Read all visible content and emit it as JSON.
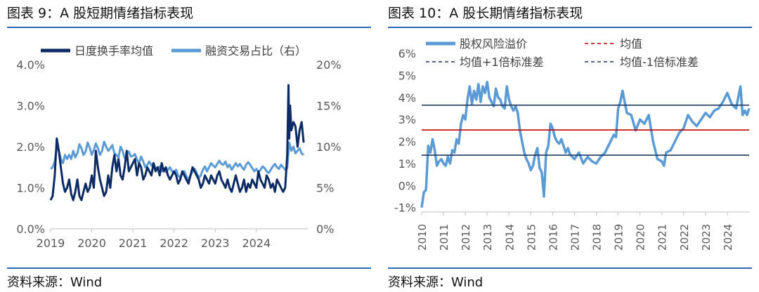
{
  "chart_data": [
    {
      "id": "fig9",
      "type": "line",
      "title": "图表  9：A  股短期情绪指标表现",
      "source": "资料来源：Wind",
      "colors": {
        "turnover": "#0c2a63",
        "margin": "#5b9bd5"
      },
      "x_ticks": [
        "2019",
        "2020",
        "2021",
        "2022",
        "2023",
        "2024"
      ],
      "y_left_ticks": [
        "0.0%",
        "1.0%",
        "2.0%",
        "3.0%",
        "4.0%"
      ],
      "y_right_ticks": [
        "0%",
        "5%",
        "10%",
        "15%",
        "20%"
      ],
      "ylim_left": [
        0,
        4
      ],
      "ylim_right": [
        0,
        20
      ],
      "xlim": [
        2019.0,
        2025.25
      ],
      "legend_position": "top",
      "series": [
        {
          "name": "日度换手率均值",
          "axis": "left",
          "x": [
            2019.0,
            2019.05,
            2019.1,
            2019.15,
            2019.2,
            2019.25,
            2019.3,
            2019.35,
            2019.4,
            2019.45,
            2019.5,
            2019.55,
            2019.6,
            2019.65,
            2019.7,
            2019.75,
            2019.8,
            2019.85,
            2019.9,
            2019.95,
            2020.0,
            2020.05,
            2020.1,
            2020.15,
            2020.2,
            2020.25,
            2020.3,
            2020.35,
            2020.4,
            2020.45,
            2020.5,
            2020.55,
            2020.6,
            2020.65,
            2020.7,
            2020.75,
            2020.8,
            2020.85,
            2020.9,
            2020.95,
            2021.0,
            2021.05,
            2021.1,
            2021.15,
            2021.2,
            2021.25,
            2021.3,
            2021.35,
            2021.4,
            2021.45,
            2021.5,
            2021.55,
            2021.6,
            2021.65,
            2021.7,
            2021.75,
            2021.8,
            2021.85,
            2021.9,
            2021.95,
            2022.0,
            2022.05,
            2022.1,
            2022.15,
            2022.2,
            2022.25,
            2022.3,
            2022.35,
            2022.4,
            2022.45,
            2022.5,
            2022.55,
            2022.6,
            2022.65,
            2022.7,
            2022.75,
            2022.8,
            2022.85,
            2022.9,
            2022.95,
            2023.0,
            2023.05,
            2023.1,
            2023.15,
            2023.2,
            2023.25,
            2023.3,
            2023.35,
            2023.4,
            2023.45,
            2023.5,
            2023.55,
            2023.6,
            2023.65,
            2023.7,
            2023.75,
            2023.8,
            2023.85,
            2023.9,
            2023.95,
            2024.0,
            2024.05,
            2024.1,
            2024.15,
            2024.2,
            2024.25,
            2024.3,
            2024.35,
            2024.4,
            2024.45,
            2024.5,
            2024.55,
            2024.6,
            2024.65,
            2024.7,
            2024.75,
            2024.78,
            2024.8,
            2024.82,
            2024.85,
            2024.9,
            2024.95,
            2025.0,
            2025.05,
            2025.1,
            2025.15
          ],
          "y": [
            0.7,
            0.8,
            1.3,
            2.2,
            1.9,
            1.5,
            1.1,
            0.9,
            1.0,
            1.2,
            0.85,
            0.7,
            0.9,
            1.2,
            0.8,
            0.7,
            0.9,
            1.1,
            0.9,
            1.0,
            1.3,
            1.0,
            1.9,
            1.5,
            1.2,
            1.0,
            0.8,
            0.9,
            1.3,
            1.0,
            1.5,
            1.8,
            1.4,
            1.7,
            1.3,
            1.2,
            1.5,
            1.9,
            1.4,
            1.5,
            1.6,
            1.7,
            1.3,
            1.6,
            1.5,
            1.2,
            1.3,
            1.5,
            1.4,
            1.3,
            1.6,
            1.4,
            1.5,
            1.3,
            1.6,
            1.4,
            1.5,
            1.3,
            1.2,
            1.3,
            1.4,
            1.3,
            1.1,
            1.2,
            1.4,
            1.3,
            1.2,
            1.1,
            1.3,
            1.5,
            1.4,
            1.3,
            1.2,
            1.0,
            1.1,
            1.3,
            1.2,
            1.1,
            1.3,
            1.2,
            1.1,
            1.3,
            1.4,
            1.2,
            1.1,
            1.0,
            1.2,
            1.0,
            0.9,
            1.1,
            1.3,
            1.1,
            0.9,
            1.0,
            1.2,
            0.9,
            1.1,
            1.0,
            1.2,
            1.1,
            1.0,
            1.4,
            1.2,
            1.1,
            1.0,
            1.3,
            1.2,
            1.0,
            1.1,
            0.9,
            1.2,
            1.1,
            1.0,
            0.9,
            1.0,
            1.8,
            3.5,
            2.2,
            3.0,
            2.4,
            2.6,
            2.5,
            2.0,
            2.4,
            2.6,
            2.1
          ]
        },
        {
          "name": "融资交易占比（右）",
          "axis": "right",
          "x": [
            2019.0,
            2019.05,
            2019.1,
            2019.15,
            2019.2,
            2019.25,
            2019.3,
            2019.35,
            2019.4,
            2019.45,
            2019.5,
            2019.55,
            2019.6,
            2019.65,
            2019.7,
            2019.75,
            2019.8,
            2019.85,
            2019.9,
            2019.95,
            2020.0,
            2020.05,
            2020.1,
            2020.15,
            2020.2,
            2020.25,
            2020.3,
            2020.35,
            2020.4,
            2020.45,
            2020.5,
            2020.55,
            2020.6,
            2020.65,
            2020.7,
            2020.75,
            2020.8,
            2020.85,
            2020.9,
            2020.95,
            2021.0,
            2021.05,
            2021.1,
            2021.15,
            2021.2,
            2021.25,
            2021.3,
            2021.35,
            2021.4,
            2021.45,
            2021.5,
            2021.55,
            2021.6,
            2021.65,
            2021.7,
            2021.75,
            2021.8,
            2021.85,
            2021.9,
            2021.95,
            2022.0,
            2022.05,
            2022.1,
            2022.15,
            2022.2,
            2022.25,
            2022.3,
            2022.35,
            2022.4,
            2022.45,
            2022.5,
            2022.55,
            2022.6,
            2022.65,
            2022.7,
            2022.75,
            2022.8,
            2022.85,
            2022.9,
            2022.95,
            2023.0,
            2023.05,
            2023.1,
            2023.15,
            2023.2,
            2023.25,
            2023.3,
            2023.35,
            2023.4,
            2023.45,
            2023.5,
            2023.55,
            2023.6,
            2023.65,
            2023.7,
            2023.75,
            2023.8,
            2023.85,
            2023.9,
            2023.95,
            2024.0,
            2024.05,
            2024.1,
            2024.15,
            2024.2,
            2024.25,
            2024.3,
            2024.35,
            2024.4,
            2024.45,
            2024.5,
            2024.55,
            2024.6,
            2024.65,
            2024.7,
            2024.75,
            2024.8,
            2024.85,
            2024.9,
            2024.95,
            2025.0,
            2025.05,
            2025.1,
            2025.15
          ],
          "y": [
            7.3,
            7.5,
            8.2,
            10.0,
            9.5,
            8.5,
            8.0,
            9.0,
            8.5,
            9.0,
            8.5,
            9.5,
            8.7,
            9.2,
            10.3,
            9.8,
            9.0,
            9.4,
            10.5,
            9.9,
            9.0,
            9.6,
            10.4,
            9.8,
            9.0,
            9.5,
            10.6,
            10.0,
            9.5,
            9.8,
            10.2,
            9.2,
            9.0,
            8.7,
            10.0,
            9.5,
            8.6,
            9.0,
            9.4,
            8.8,
            8.9,
            9.1,
            8.4,
            8.0,
            8.8,
            8.2,
            7.5,
            7.8,
            8.2,
            7.7,
            8.0,
            7.4,
            7.2,
            7.6,
            7.0,
            7.3,
            6.9,
            7.2,
            7.5,
            7.0,
            6.8,
            7.2,
            6.5,
            6.2,
            6.8,
            7.0,
            6.4,
            6.0,
            6.5,
            7.0,
            7.3,
            6.8,
            6.2,
            6.5,
            7.2,
            7.6,
            7.0,
            7.5,
            8.0,
            7.7,
            7.5,
            7.9,
            8.3,
            7.9,
            7.8,
            8.2,
            7.5,
            7.8,
            7.2,
            7.6,
            8.0,
            7.6,
            7.9,
            7.5,
            7.2,
            7.8,
            8.1,
            7.8,
            7.4,
            7.0,
            7.3,
            6.9,
            7.2,
            7.6,
            7.4,
            7.0,
            6.8,
            7.2,
            7.6,
            7.9,
            7.5,
            7.3,
            7.8,
            7.5,
            7.2,
            7.4,
            10.5,
            9.5,
            10.0,
            9.2,
            9.5,
            9.8,
            9.2,
            9.0
          ]
        }
      ]
    },
    {
      "id": "fig10",
      "type": "line",
      "title": "图表  10：A  股长期情绪指标表现",
      "source": "资料来源：Wind",
      "colors": {
        "premium": "#5b9bd5",
        "mean": "#c00000",
        "band": "#1f3864"
      },
      "x_ticks": [
        "2010",
        "2011",
        "2012",
        "2013",
        "2014",
        "2015",
        "2016",
        "2017",
        "2018",
        "2019",
        "2020",
        "2021",
        "2022",
        "2023",
        "2024"
      ],
      "y_ticks": [
        "-1%",
        "0%",
        "1%",
        "2%",
        "3%",
        "4%",
        "5%",
        "6%"
      ],
      "ylim": [
        -1.2,
        6
      ],
      "xlim": [
        2010.0,
        2025.0
      ],
      "legend_position": "top",
      "series": [
        {
          "name": "股权风险溢价",
          "x": [
            2010.0,
            2010.1,
            2010.2,
            2010.3,
            2010.4,
            2010.5,
            2010.6,
            2010.7,
            2010.8,
            2010.9,
            2011.0,
            2011.1,
            2011.2,
            2011.3,
            2011.4,
            2011.5,
            2011.6,
            2011.7,
            2011.8,
            2011.9,
            2012.0,
            2012.1,
            2012.2,
            2012.3,
            2012.4,
            2012.5,
            2012.6,
            2012.7,
            2012.8,
            2012.9,
            2013.0,
            2013.1,
            2013.2,
            2013.3,
            2013.4,
            2013.5,
            2013.6,
            2013.7,
            2013.8,
            2013.9,
            2014.0,
            2014.1,
            2014.2,
            2014.3,
            2014.4,
            2014.5,
            2014.6,
            2014.7,
            2014.8,
            2014.9,
            2015.0,
            2015.1,
            2015.2,
            2015.3,
            2015.4,
            2015.5,
            2015.6,
            2015.7,
            2015.8,
            2015.9,
            2016.0,
            2016.1,
            2016.2,
            2016.3,
            2016.4,
            2016.5,
            2016.6,
            2016.7,
            2016.8,
            2016.9,
            2017.0,
            2017.2,
            2017.4,
            2017.6,
            2017.8,
            2018.0,
            2018.2,
            2018.4,
            2018.6,
            2018.8,
            2018.9,
            2019.0,
            2019.1,
            2019.2,
            2019.4,
            2019.6,
            2019.8,
            2020.0,
            2020.2,
            2020.4,
            2020.6,
            2020.8,
            2021.0,
            2021.1,
            2021.2,
            2021.4,
            2021.6,
            2021.8,
            2022.0,
            2022.2,
            2022.4,
            2022.6,
            2022.8,
            2023.0,
            2023.2,
            2023.4,
            2023.6,
            2023.8,
            2024.0,
            2024.2,
            2024.4,
            2024.6,
            2024.7,
            2024.8,
            2024.9,
            2025.0
          ],
          "y": [
            -1.0,
            -0.3,
            -0.2,
            1.8,
            1.5,
            2.1,
            1.6,
            0.9,
            1.1,
            1.2,
            1.0,
            0.9,
            1.3,
            1.0,
            1.6,
            1.5,
            2.1,
            1.9,
            2.8,
            3.2,
            3.0,
            3.9,
            4.5,
            3.7,
            4.3,
            3.9,
            4.6,
            3.8,
            4.5,
            4.2,
            4.7,
            4.0,
            3.8,
            3.6,
            4.4,
            4.0,
            3.9,
            3.6,
            3.5,
            4.5,
            3.9,
            3.6,
            3.4,
            3.6,
            3.3,
            2.5,
            2.0,
            1.5,
            1.2,
            1.0,
            0.7,
            0.9,
            1.4,
            1.7,
            0.8,
            0.6,
            -0.5,
            1.5,
            1.8,
            2.8,
            2.6,
            2.2,
            2.0,
            1.9,
            2.1,
            1.8,
            1.5,
            1.7,
            1.4,
            1.3,
            1.2,
            1.5,
            1.0,
            1.3,
            1.1,
            1.0,
            1.3,
            1.5,
            1.9,
            2.3,
            2.2,
            3.5,
            3.8,
            4.3,
            3.3,
            3.2,
            2.5,
            3.0,
            2.8,
            3.2,
            2.0,
            1.2,
            1.1,
            0.9,
            1.5,
            1.6,
            2.0,
            2.4,
            2.6,
            3.2,
            2.9,
            2.7,
            3.0,
            3.3,
            3.1,
            3.4,
            3.5,
            3.8,
            4.2,
            3.7,
            3.5,
            4.5,
            3.2,
            3.4,
            3.2,
            3.5
          ]
        },
        {
          "name": "均值",
          "value": 2.52
        },
        {
          "name": "均值+1倍标准差",
          "value": 3.65
        },
        {
          "name": "均值-1倍标准差",
          "value": 1.38
        }
      ]
    }
  ]
}
